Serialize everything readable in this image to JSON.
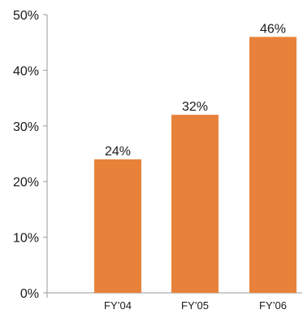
{
  "chart_data": {
    "type": "bar",
    "categories": [
      "FY’04",
      "FY’05",
      "FY’06"
    ],
    "values": [
      24,
      32,
      46
    ],
    "data_labels": [
      "24%",
      "32%",
      "46%"
    ],
    "yticks": [
      0,
      10,
      20,
      30,
      40,
      50
    ],
    "ytick_labels": [
      "0%",
      "10%",
      "20%",
      "30%",
      "40%",
      "50%"
    ],
    "ylim": [
      0,
      50
    ],
    "grid": false,
    "bar_color": "#E8823A",
    "axis_color": "#9a9a9a"
  }
}
